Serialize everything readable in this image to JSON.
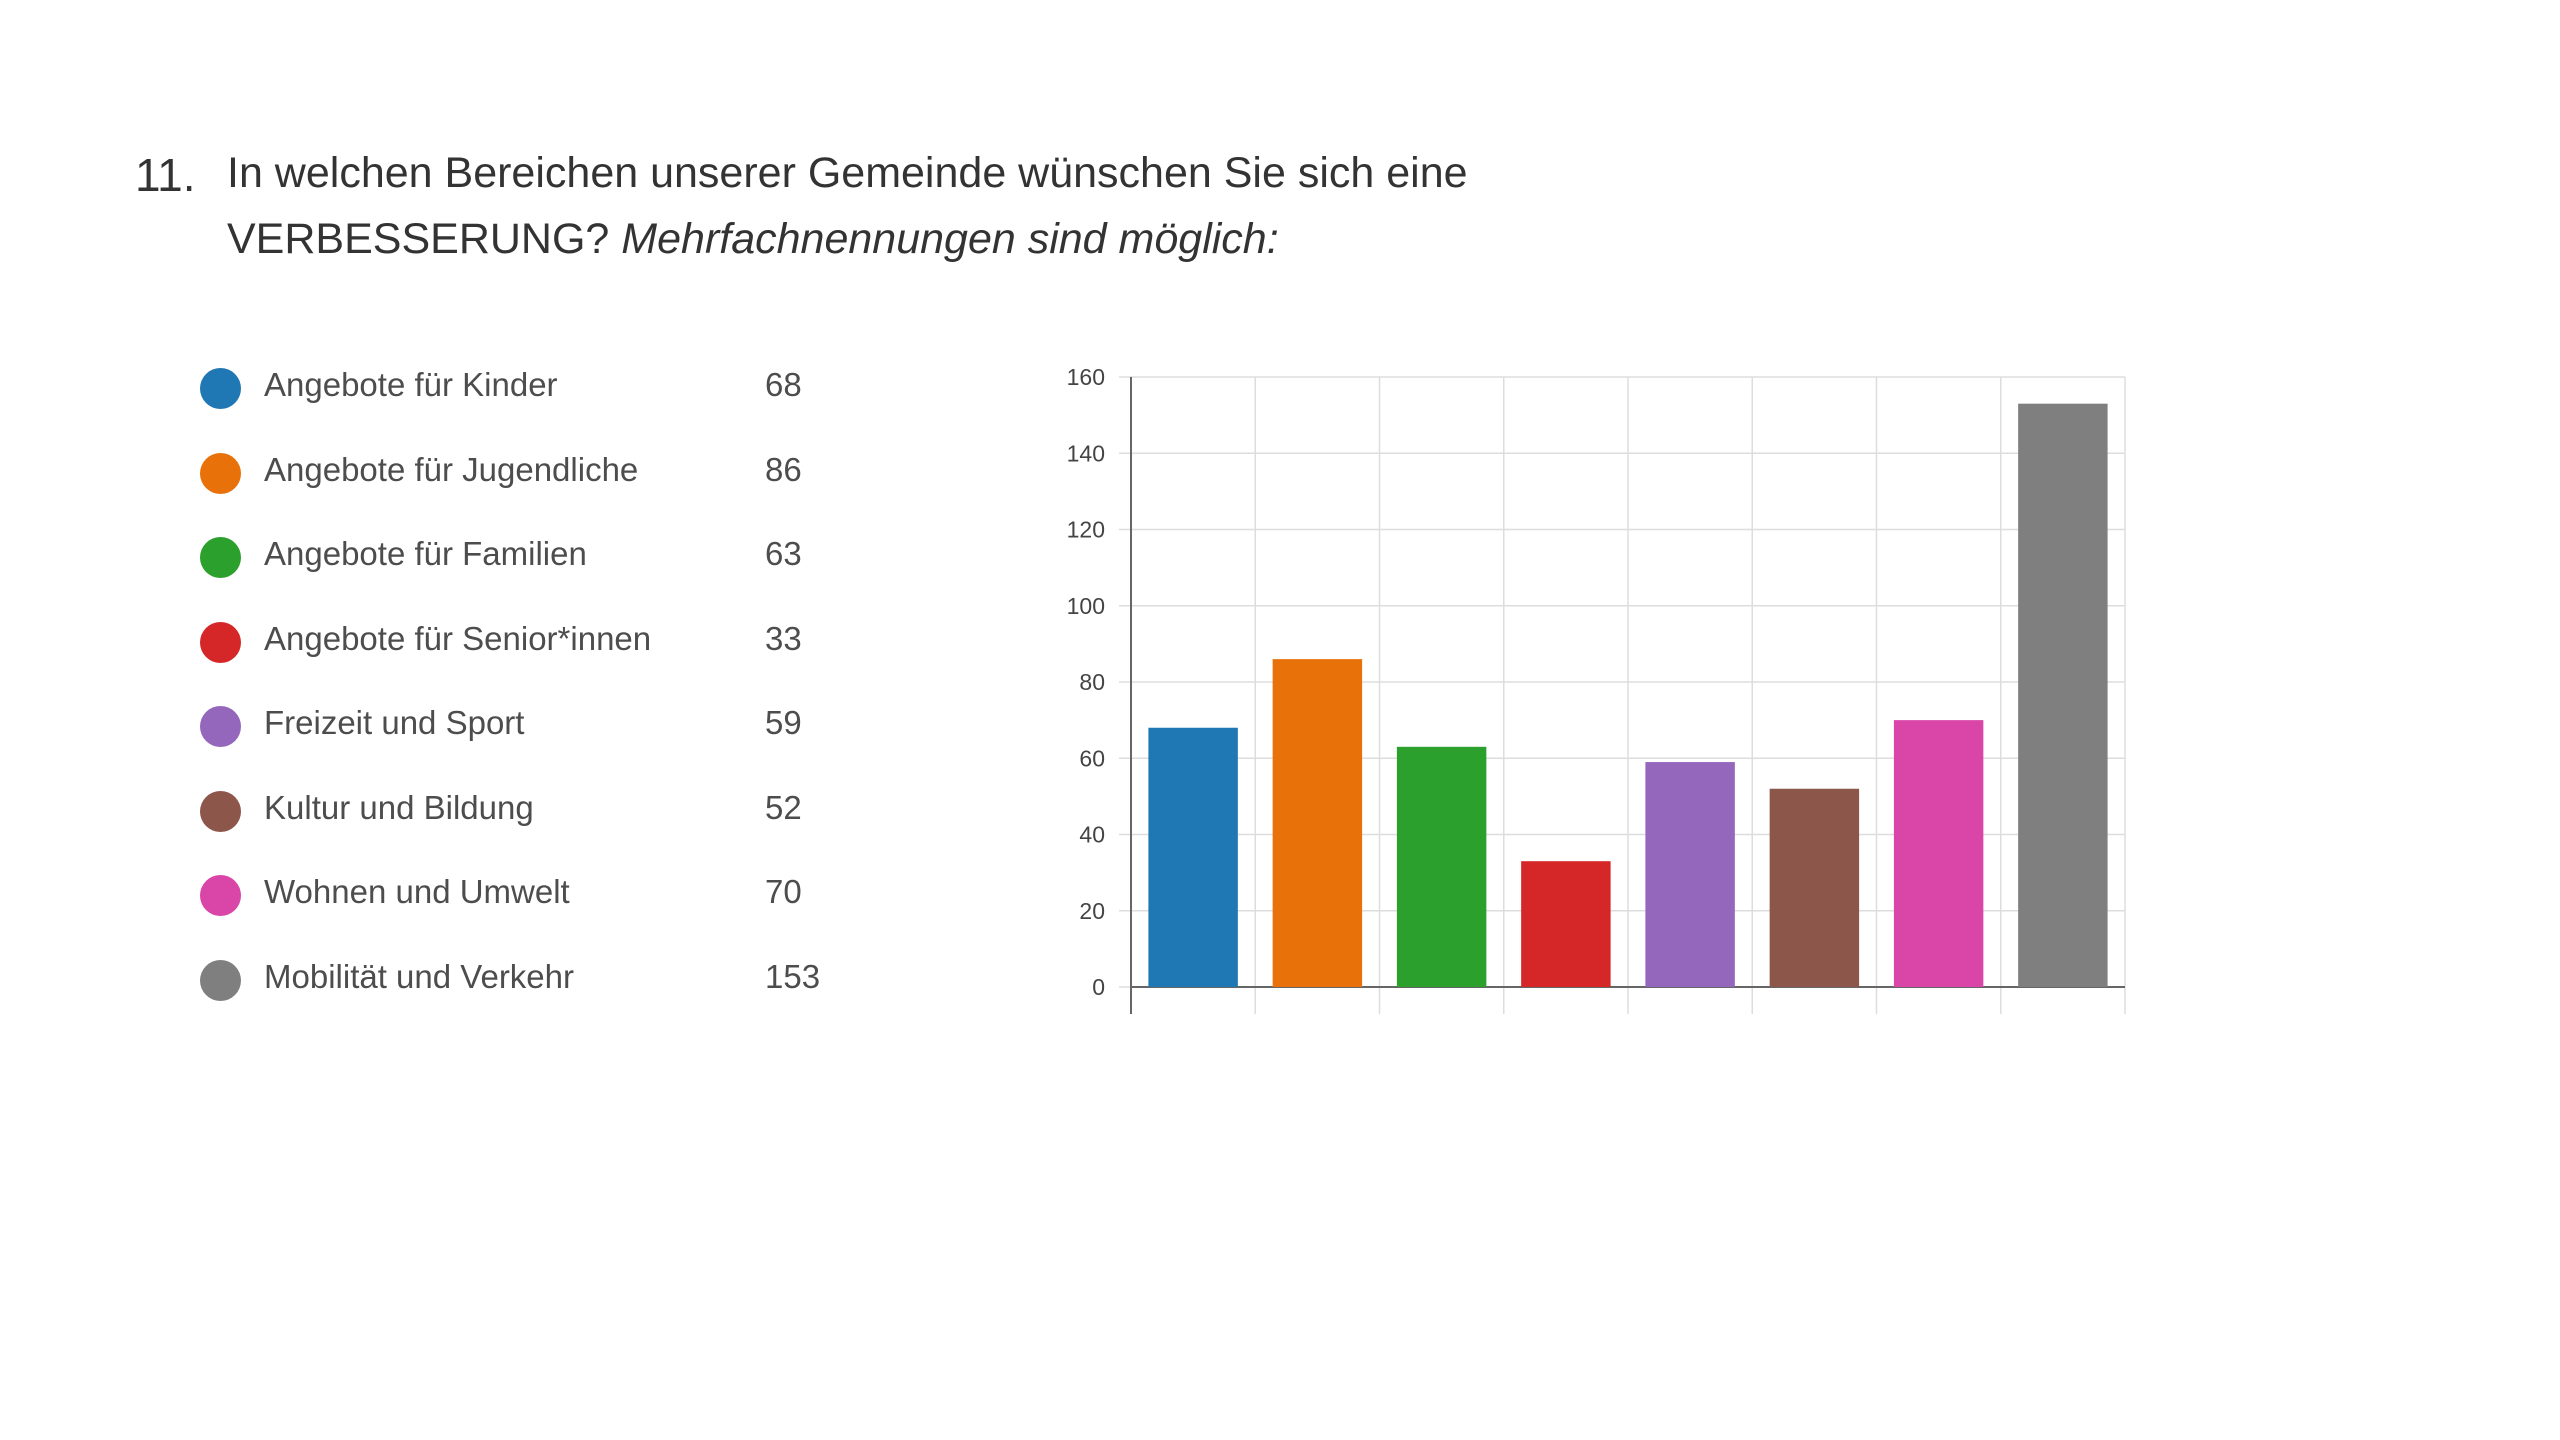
{
  "question": {
    "number": "11.",
    "line1": "In welchen Bereichen unserer Gemeinde wünschen Sie sich eine",
    "line2_regular": "VERBESSERUNG?",
    "line2_italic": "Mehrfachnennungen sind möglich:"
  },
  "legend": [
    {
      "label": "Angebote für Kinder",
      "value": "68",
      "color": "#1f77b4"
    },
    {
      "label": "Angebote für Jugendliche",
      "value": "86",
      "color": "#e8710a"
    },
    {
      "label": "Angebote für Familien",
      "value": "63",
      "color": "#2ca02c"
    },
    {
      "label": "Angebote für Senior*innen",
      "value": "33",
      "color": "#d62728"
    },
    {
      "label": "Freizeit und Sport",
      "value": "59",
      "color": "#9467bd"
    },
    {
      "label": "Kultur und Bildung",
      "value": "52",
      "color": "#8c564b"
    },
    {
      "label": "Wohnen und Umwelt",
      "value": "70",
      "color": "#d946a8"
    },
    {
      "label": "Mobilität und Verkehr",
      "value": "153",
      "color": "#7f7f7f"
    }
  ],
  "chart_data": {
    "type": "bar",
    "categories": [
      "Angebote für Kinder",
      "Angebote für Jugendliche",
      "Angebote für Familien",
      "Angebote für Senior*innen",
      "Freizeit und Sport",
      "Kultur und Bildung",
      "Wohnen und Umwelt",
      "Mobilität und Verkehr"
    ],
    "values": [
      68,
      86,
      63,
      33,
      59,
      52,
      70,
      153
    ],
    "colors": [
      "#1f77b4",
      "#e8710a",
      "#2ca02c",
      "#d62728",
      "#9467bd",
      "#8c564b",
      "#d946a8",
      "#7f7f7f"
    ],
    "ylim": [
      0,
      160
    ],
    "yticks": [
      "0",
      "20",
      "40",
      "60",
      "80",
      "100",
      "120",
      "140",
      "160"
    ],
    "grid": true,
    "legend_position": "left"
  }
}
